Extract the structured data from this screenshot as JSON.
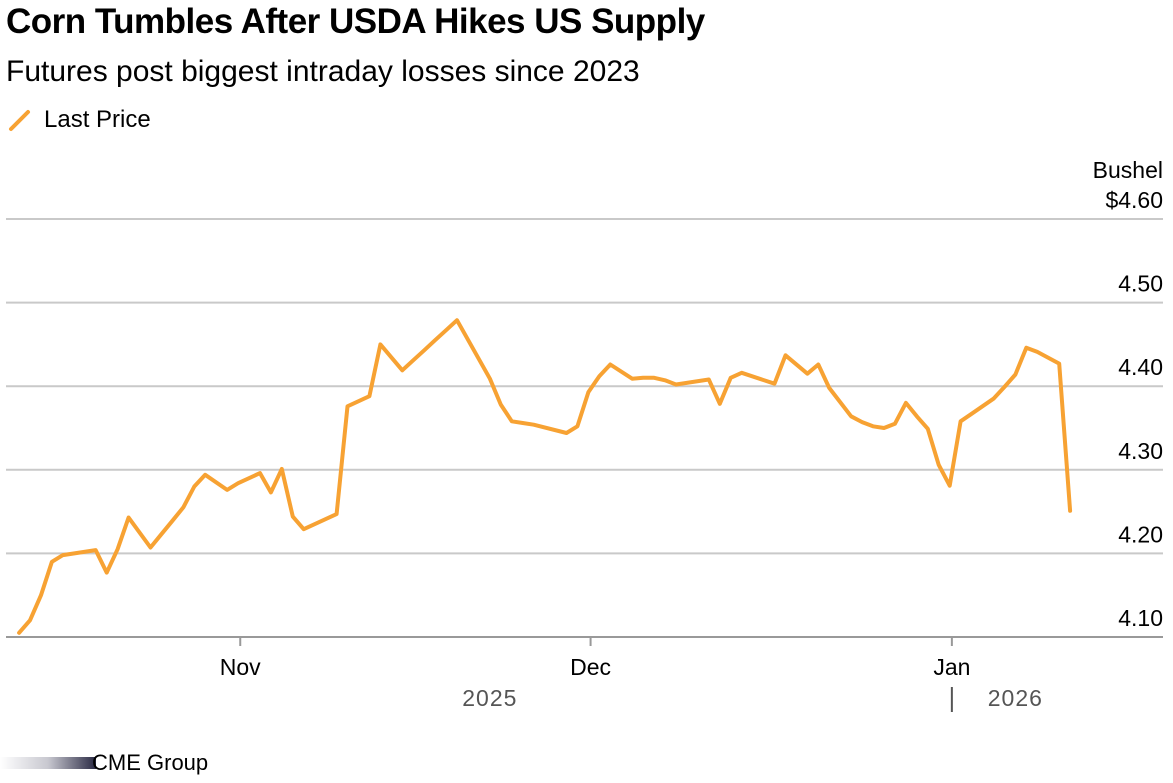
{
  "title": "Corn Tumbles After USDA Hikes US Supply",
  "subtitle": "Futures post biggest intraday losses since 2023",
  "source": "CME Group",
  "chart_data": {
    "type": "line",
    "title": "Corn Tumbles After USDA Hikes US Supply",
    "subtitle": "Futures post biggest intraday losses since 2023",
    "ylabel": "Bushel",
    "ylim": [
      4.1,
      4.6
    ],
    "yticks": [
      4.1,
      4.2,
      4.3,
      4.4,
      4.5,
      4.6
    ],
    "ytick_labels": [
      "4.10",
      "4.20",
      "4.30",
      "4.40",
      "4.50",
      "$4.60"
    ],
    "xlim": [
      -0.1,
      98
    ],
    "xticks": [
      {
        "day": 20.2,
        "label": "Nov"
      },
      {
        "day": 52.2,
        "label": "Dec"
      },
      {
        "day": 85.2,
        "label": "Jan"
      }
    ],
    "year_labels": [
      {
        "day": 43,
        "label": "2025"
      },
      {
        "day": 91,
        "label": "2026"
      }
    ],
    "year_divider_day": 85.2,
    "grid": true,
    "legend": "top-left",
    "series": [
      {
        "name": "Last Price",
        "color": "#f7a233",
        "x": [
          0,
          1,
          2,
          3,
          4,
          7,
          8,
          9,
          10,
          12,
          13,
          14,
          15,
          16,
          17,
          19,
          20,
          21,
          22,
          23,
          24,
          25,
          26,
          29,
          30,
          32,
          33,
          35,
          36,
          37,
          38,
          39,
          40,
          43,
          44,
          45,
          46,
          47,
          50,
          51,
          52,
          53,
          54,
          56,
          57,
          58,
          59,
          60,
          63,
          64,
          65,
          66,
          69,
          70,
          72,
          73,
          74,
          76,
          77,
          78,
          79,
          80,
          81,
          82,
          83,
          84,
          85,
          86,
          87,
          89,
          90,
          91,
          92,
          93,
          95,
          96
        ],
        "values": [
          4.105,
          4.12,
          4.15,
          4.19,
          4.198,
          4.204,
          4.177,
          4.205,
          4.243,
          4.207,
          4.223,
          4.239,
          4.255,
          4.28,
          4.294,
          4.276,
          4.284,
          4.29,
          4.296,
          4.273,
          4.301,
          4.244,
          4.229,
          4.247,
          4.376,
          4.388,
          4.45,
          4.419,
          4.431,
          4.443,
          4.455,
          4.467,
          4.479,
          4.409,
          4.378,
          4.358,
          4.356,
          4.354,
          4.344,
          4.352,
          4.393,
          4.412,
          4.426,
          4.409,
          4.41,
          4.41,
          4.407,
          4.402,
          4.408,
          4.379,
          4.41,
          4.416,
          4.403,
          4.437,
          4.415,
          4.426,
          4.398,
          4.364,
          4.357,
          4.352,
          4.35,
          4.355,
          4.38,
          4.364,
          4.349,
          4.306,
          4.281,
          4.358,
          4.367,
          4.385,
          4.399,
          4.414,
          4.446,
          4.441,
          4.427,
          4.251
        ]
      }
    ]
  }
}
